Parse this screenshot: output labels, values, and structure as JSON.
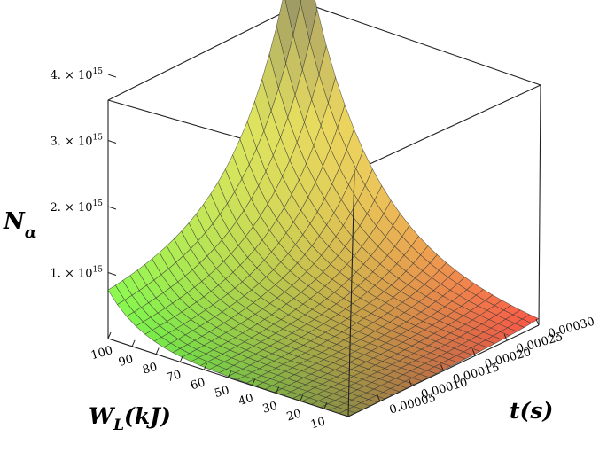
{
  "chart_data": {
    "type": "surface",
    "title": "",
    "zlabel": {
      "main": "N",
      "sub": "α"
    },
    "xlabel": {
      "main": "W",
      "sub": "L",
      "rest": "(kJ)"
    },
    "ylabel": {
      "main": "t",
      "rest": "(s)"
    },
    "x_ticks": [
      "100",
      "90",
      "80",
      "70",
      "60",
      "50",
      "40",
      "30",
      "20",
      "10"
    ],
    "x_tick_values": [
      100,
      90,
      80,
      70,
      60,
      50,
      40,
      30,
      20,
      10
    ],
    "y_ticks": [
      "0.00005",
      "0.00010",
      "0.00015",
      "0.00020",
      "0.00025",
      "0.00030"
    ],
    "y_tick_values": [
      5e-05,
      0.0001,
      0.00015,
      0.0002,
      0.00025,
      0.0003
    ],
    "z_ticks": [
      {
        "base": "1. × 10",
        "exp": "15",
        "value": 1000000000000000.0
      },
      {
        "base": "2. × 10",
        "exp": "15",
        "value": 2000000000000000.0
      },
      {
        "base": "3. × 10",
        "exp": "15",
        "value": 3000000000000000.0
      },
      {
        "base": "4. × 10",
        "exp": "15",
        "value": 4000000000000000.0
      }
    ],
    "x_range": [
      0,
      100
    ],
    "y_range": [
      0,
      0.0003
    ],
    "z_range": [
      0,
      4900000000000000.0
    ],
    "surface_peak": {
      "x": 100,
      "y": 0.0003,
      "z": 4900000000000000.0
    },
    "grid_lines": 26,
    "colors": {
      "low_w": "#33ff44",
      "high_t": "#ff3333",
      "peak": "#7a7a70"
    }
  }
}
